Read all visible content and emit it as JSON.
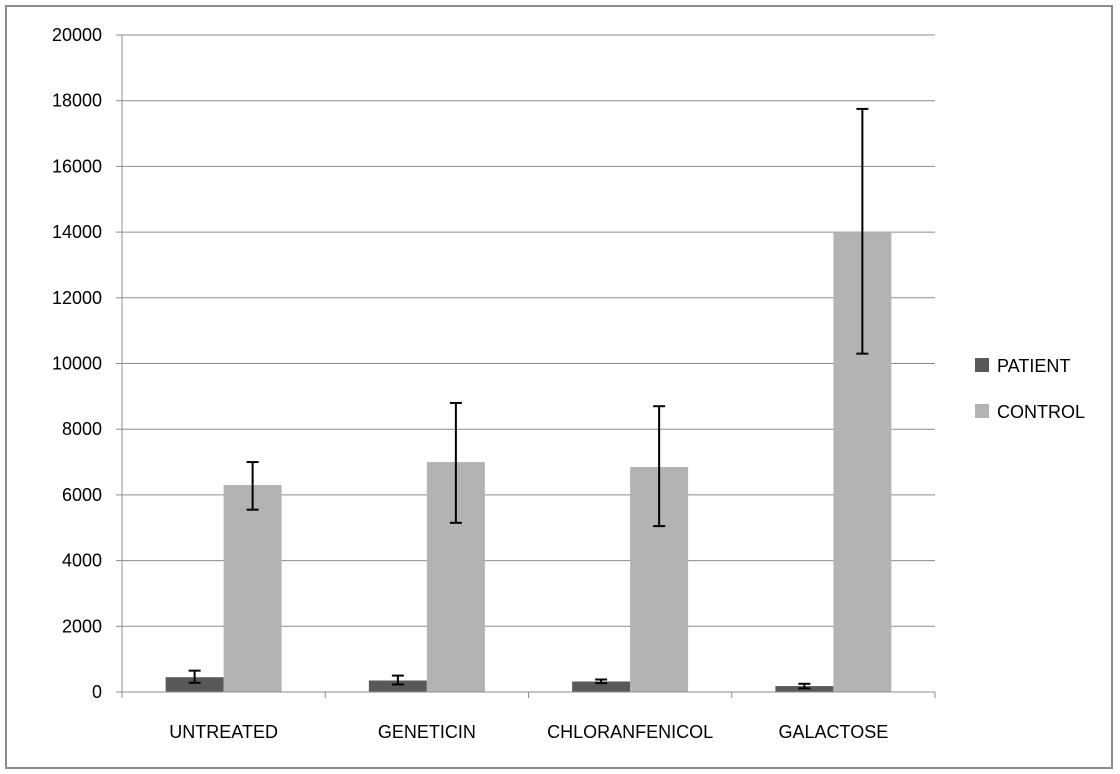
{
  "chart_data": {
    "type": "bar",
    "categories": [
      "UNTREATED",
      "GENETICIN",
      "CHLORANFENICOL",
      "GALACTOSE"
    ],
    "series": [
      {
        "name": "PATIENT",
        "color": "#595959",
        "values": [
          450,
          350,
          320,
          180
        ],
        "error_low": [
          280,
          230,
          270,
          110
        ],
        "error_high": [
          650,
          500,
          380,
          250
        ]
      },
      {
        "name": "CONTROL",
        "color": "#b3b3b3",
        "values": [
          6300,
          7000,
          6850,
          14000
        ],
        "error_low": [
          5550,
          5150,
          5050,
          10300
        ],
        "error_high": [
          7000,
          8800,
          8700,
          17750
        ]
      }
    ],
    "yticks": [
      "0",
      "2000",
      "4000",
      "6000",
      "8000",
      "10000",
      "12000",
      "14000",
      "16000",
      "18000",
      "20000"
    ],
    "ylim": [
      0,
      20000
    ],
    "grid": true,
    "legend_position": "right",
    "title": "",
    "xlabel": "",
    "ylabel": ""
  }
}
